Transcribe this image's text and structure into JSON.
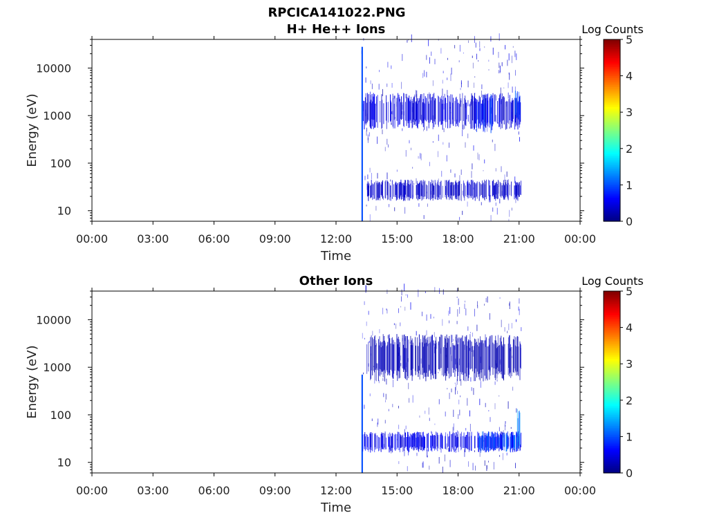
{
  "figure_title": "RPCICA141022.PNG",
  "chart_data": [
    {
      "type": "heatmap",
      "title": "H+ He++ Ions",
      "xlabel": "Time",
      "ylabel": "Energy (eV)",
      "x_ticks": [
        "00:00",
        "03:00",
        "06:00",
        "09:00",
        "12:00",
        "15:00",
        "18:00",
        "21:00",
        "00:00"
      ],
      "x_range_hours": [
        0,
        24
      ],
      "y_scale": "log",
      "y_ticks": [
        10,
        100,
        1000,
        10000
      ],
      "y_tick_labels": [
        "10",
        "100",
        "1000",
        "10000"
      ],
      "ylim": [
        6,
        40000
      ],
      "colorbar": {
        "label": "Log Counts",
        "range": [
          0,
          5
        ],
        "ticks": [
          "0",
          "1",
          "2",
          "3",
          "4",
          "5"
        ],
        "colormap": "jet"
      },
      "data_coverage_hours": [
        13.25,
        21.1
      ],
      "features": [
        {
          "description_hours": [
            13.25,
            13.32
          ],
          "energy_eV": [
            6,
            28000
          ],
          "log_counts": 1.0
        },
        {
          "description_hours": [
            13.3,
            21.1
          ],
          "energy_eV": [
            500,
            3000
          ],
          "log_counts": 0.5
        },
        {
          "description_hours": [
            13.5,
            21.1
          ],
          "energy_eV": [
            16,
            45
          ],
          "log_counts": 0.4
        },
        {
          "description_hours": [
            18.9,
            19.7
          ],
          "energy_eV": [
            400,
            3000
          ],
          "log_counts": 0.9
        },
        {
          "description_hours": [
            20.8,
            21.05
          ],
          "energy_eV": [
            600,
            4000
          ],
          "log_counts": 1.2
        }
      ]
    },
    {
      "type": "heatmap",
      "title": "Other Ions",
      "xlabel": "Time",
      "ylabel": "Energy (eV)",
      "x_ticks": [
        "00:00",
        "03:00",
        "06:00",
        "09:00",
        "12:00",
        "15:00",
        "18:00",
        "21:00",
        "00:00"
      ],
      "x_range_hours": [
        0,
        24
      ],
      "y_scale": "log",
      "y_ticks": [
        10,
        100,
        1000,
        10000
      ],
      "y_tick_labels": [
        "10",
        "100",
        "1000",
        "10000"
      ],
      "ylim": [
        6,
        40000
      ],
      "colorbar": {
        "label": "Log Counts",
        "range": [
          0,
          5
        ],
        "ticks": [
          "0",
          "1",
          "2",
          "3",
          "4",
          "5"
        ],
        "colormap": "jet"
      },
      "data_coverage_hours": [
        13.25,
        21.1
      ],
      "features": [
        {
          "description_hours": [
            13.25,
            13.32
          ],
          "energy_eV": [
            6,
            700
          ],
          "log_counts": 1.0
        },
        {
          "description_hours": [
            13.3,
            21.1
          ],
          "energy_eV": [
            16,
            45
          ],
          "log_counts": 0.6
        },
        {
          "description_hours": [
            19.0,
            20.9
          ],
          "energy_eV": [
            16,
            45
          ],
          "log_counts": 1.1
        },
        {
          "description_hours": [
            20.9,
            21.1
          ],
          "energy_eV": [
            16,
            150
          ],
          "log_counts": 1.4
        },
        {
          "description_hours": [
            13.5,
            21.1
          ],
          "energy_eV": [
            500,
            5000
          ],
          "log_counts": 0.3
        }
      ]
    }
  ]
}
